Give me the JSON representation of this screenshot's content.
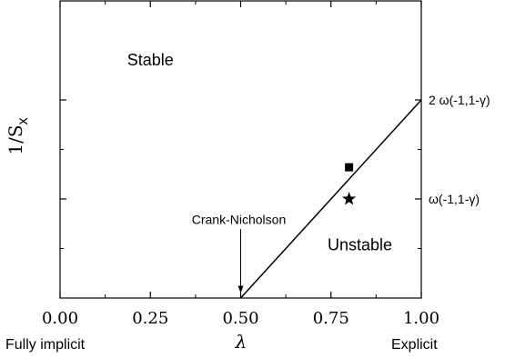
{
  "chart_data": {
    "type": "line",
    "title": "",
    "xlabel": "λ",
    "ylabel": "1/S",
    "ylabel_subscript": "x",
    "xlim": [
      0.0,
      1.0
    ],
    "ylim": [
      0,
      2
    ],
    "x_ticks": [
      {
        "value": 0.0,
        "label": "0.00"
      },
      {
        "value": 0.25,
        "label": "0.25"
      },
      {
        "value": 0.5,
        "label": "0.50"
      },
      {
        "value": 0.75,
        "label": "0.75"
      },
      {
        "value": 1.0,
        "label": "1.00"
      }
    ],
    "x_minor_ticks": [
      0.125,
      0.375,
      0.625,
      0.875
    ],
    "y_major_ticks": [
      1,
      2
    ],
    "y_minor_ticks": [
      0.5,
      1.5
    ],
    "right_tick_labels": [
      {
        "value": 2,
        "label": "2 ω(-1,1-γ)"
      },
      {
        "value": 1,
        "label": "ω(-1,1-γ)"
      }
    ],
    "series": [
      {
        "x": [
          0.5,
          1.0
        ],
        "y": [
          0,
          2
        ]
      }
    ],
    "markers": [
      {
        "x": 0.8,
        "y": 1.32,
        "symbol": "square"
      },
      {
        "x": 0.8,
        "y": 1.0,
        "symbol": "star"
      }
    ],
    "region_labels": [
      {
        "text": "Stable",
        "x": 0.25,
        "y": 2.35
      },
      {
        "text": "Unstable",
        "x": 0.83,
        "y": 0.48
      }
    ],
    "annotations": [
      {
        "text": "Crank-Nicholson",
        "x": 0.5,
        "y": 0.75,
        "arrow_to": {
          "x": 0.5,
          "y": 0.05
        }
      }
    ],
    "footer_labels": {
      "left": "Fully implicit",
      "right": "Explicit"
    },
    "grid": false,
    "legend": "none"
  }
}
